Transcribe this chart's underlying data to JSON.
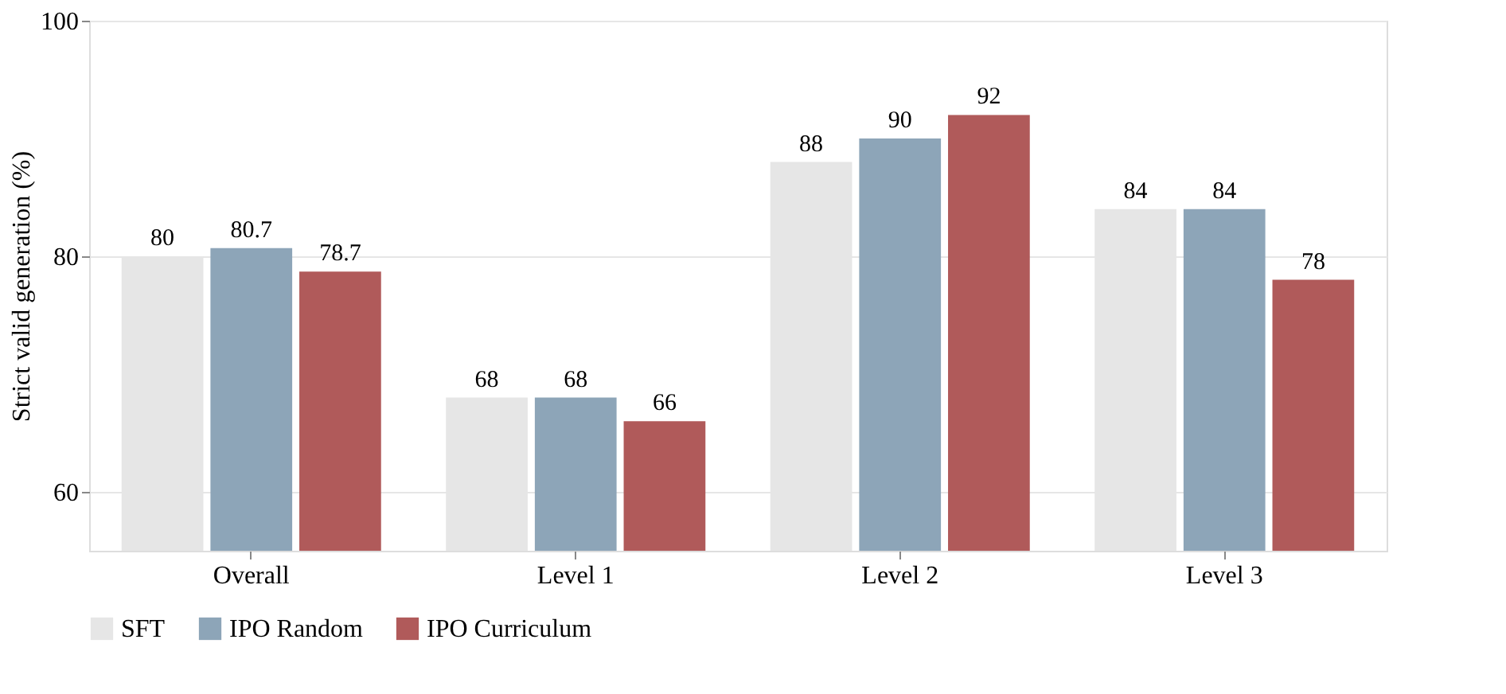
{
  "chart_data": {
    "type": "bar",
    "ylabel": "Strict valid generation (%)",
    "categories": [
      "Overall",
      "Level 1",
      "Level 2",
      "Level 3"
    ],
    "series": [
      {
        "name": "SFT",
        "color": "#e6e6e6",
        "values": [
          80,
          68,
          88,
          84
        ]
      },
      {
        "name": "IPO Random",
        "color": "#8da5b8",
        "values": [
          80.7,
          68,
          90,
          84
        ]
      },
      {
        "name": "IPO Curriculum",
        "color": "#b05a5a",
        "values": [
          78.7,
          66,
          92,
          78
        ]
      }
    ],
    "ylim": [
      55,
      100
    ],
    "yticks": [
      60,
      80,
      100
    ],
    "grid": "y",
    "legend": "bottom",
    "data_labels": true
  }
}
